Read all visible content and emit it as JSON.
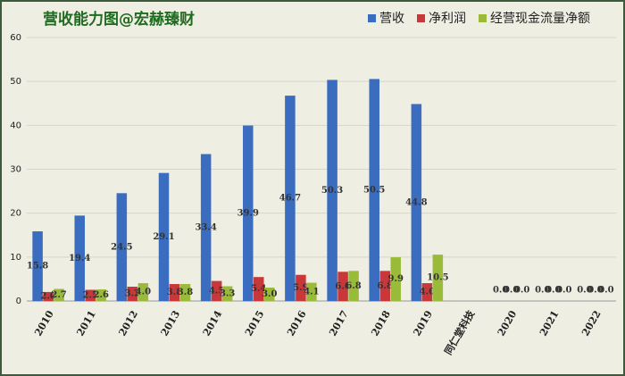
{
  "chart_data": {
    "type": "bar",
    "title": "营收能力图@宏赫臻财",
    "categories": [
      "2010",
      "2011",
      "2012",
      "2013",
      "2014",
      "2015",
      "2016",
      "2017",
      "2018",
      "2019",
      "同仁堂科技",
      "2020",
      "2021",
      "2022"
    ],
    "series": [
      {
        "name": "营收",
        "color": "#3a6cc0",
        "values": [
          15.8,
          19.4,
          24.5,
          29.1,
          33.4,
          39.9,
          46.7,
          50.3,
          50.5,
          44.8,
          null,
          0,
          0,
          0
        ],
        "value_labels": [
          "15.8",
          "19.4",
          "24.5",
          "29.1",
          "33.4",
          "39.9",
          "46.7",
          "50.3",
          "50.5",
          "44.8",
          null,
          "0.0",
          "0.0",
          "0.0"
        ]
      },
      {
        "name": "净利润",
        "color": "#c8383a",
        "values": [
          2.0,
          2.5,
          3.2,
          3.8,
          4.5,
          5.4,
          5.9,
          6.6,
          6.8,
          4.0,
          null,
          0,
          0,
          0
        ],
        "value_labels": [
          "2.0",
          "2.5",
          "3.2",
          "3.8",
          "4.5",
          "5.4",
          "5.9",
          "6.6",
          "6.8",
          "4.0",
          null,
          "0.0",
          "0.0",
          "0.0"
        ]
      },
      {
        "name": "经营现金流量净额",
        "color": "#9abb3a",
        "values": [
          2.7,
          2.6,
          4.0,
          3.8,
          3.3,
          3.0,
          4.1,
          6.8,
          9.9,
          10.5,
          null,
          0,
          0,
          0
        ],
        "value_labels": [
          "2.7",
          "2.6",
          "4.0",
          "3.8",
          "3.3",
          "3.0",
          "4.1",
          "6.8",
          "9.9",
          "10.5",
          null,
          "0.0",
          "0.0",
          "0.0"
        ]
      }
    ],
    "ylim": [
      0,
      60
    ],
    "yticks": [
      0,
      10,
      20,
      30,
      40,
      50,
      60
    ],
    "grid": true,
    "legend": "top-right"
  }
}
